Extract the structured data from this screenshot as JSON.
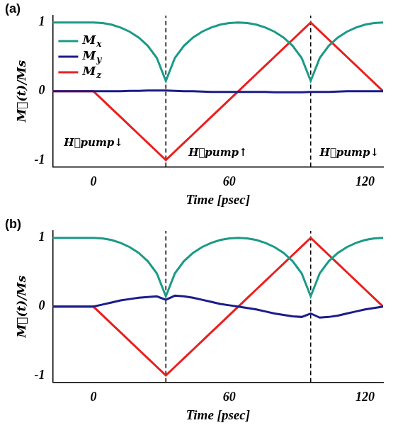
{
  "chart_data": [
    {
      "type": "line",
      "panel_label": "(a)",
      "x_label": "Time [psec]",
      "y_label": "M⃗(t)/Ms",
      "x": [
        -18,
        -10,
        -5,
        0,
        4,
        8,
        12,
        16,
        20,
        24,
        28,
        32,
        36,
        40,
        44,
        48,
        52,
        56,
        60,
        64,
        68,
        72,
        76,
        80,
        84,
        88,
        92,
        96,
        100,
        104,
        108,
        112,
        116,
        120,
        124,
        128
      ],
      "series": [
        {
          "name": "Mx",
          "color": "#1b9a86",
          "values": [
            1,
            1,
            1,
            1,
            0.992,
            0.968,
            0.927,
            0.866,
            0.781,
            0.661,
            0.484,
            0.15,
            0.484,
            0.661,
            0.781,
            0.866,
            0.927,
            0.968,
            0.992,
            1,
            0.992,
            0.968,
            0.927,
            0.866,
            0.781,
            0.661,
            0.484,
            0.15,
            0.484,
            0.661,
            0.781,
            0.866,
            0.927,
            0.968,
            0.992,
            1
          ]
        },
        {
          "name": "My",
          "color": "#1c1c8a",
          "values": [
            0,
            0,
            0,
            0,
            0,
            0,
            0,
            0.005,
            0.005,
            0.01,
            0.01,
            0.01,
            0.005,
            0,
            0,
            -0.005,
            -0.01,
            -0.01,
            -0.01,
            -0.01,
            -0.01,
            -0.01,
            -0.01,
            -0.015,
            -0.015,
            -0.015,
            -0.015,
            -0.01,
            -0.01,
            -0.01,
            -0.005,
            0,
            0,
            0,
            0,
            0
          ]
        },
        {
          "name": "Mz",
          "color": "#e8201f",
          "values": [
            0,
            0,
            0,
            0,
            -0.125,
            -0.25,
            -0.375,
            -0.5,
            -0.625,
            -0.75,
            -0.875,
            -1,
            -0.875,
            -0.75,
            -0.625,
            -0.5,
            -0.375,
            -0.25,
            -0.125,
            0,
            0.125,
            0.25,
            0.375,
            0.5,
            0.625,
            0.75,
            0.875,
            1,
            0.875,
            0.75,
            0.625,
            0.5,
            0.375,
            0.25,
            0.125,
            0
          ]
        }
      ],
      "xlim": [
        -18,
        128
      ],
      "ylim": [
        -1.1,
        1.1
      ],
      "xticks": [
        0,
        60,
        120
      ],
      "yticks": [
        -1,
        0,
        1
      ],
      "grid": false,
      "legend": "upper left",
      "vertical_lines": [
        32,
        96
      ],
      "annotations": [
        {
          "x": -13,
          "y": -0.75,
          "text": "H⃗pump↓"
        },
        {
          "x": 42,
          "y": -0.9,
          "text": "H⃗pump↑"
        },
        {
          "x": 100,
          "y": -0.9,
          "text": "H⃗pump↓"
        }
      ]
    },
    {
      "type": "line",
      "panel_label": "(b)",
      "x_label": "Time [psec]",
      "y_label": "M⃗(t)/Ms",
      "x": [
        -18,
        -10,
        -5,
        0,
        4,
        8,
        12,
        16,
        20,
        24,
        28,
        32,
        36,
        40,
        44,
        48,
        52,
        56,
        60,
        64,
        68,
        72,
        76,
        80,
        84,
        88,
        92,
        96,
        100,
        104,
        108,
        112,
        116,
        120,
        124,
        128
      ],
      "series": [
        {
          "name": "Mx",
          "color": "#1b9a86",
          "values": [
            1,
            1,
            1,
            1,
            0.992,
            0.968,
            0.927,
            0.866,
            0.781,
            0.661,
            0.484,
            0.15,
            0.484,
            0.661,
            0.781,
            0.866,
            0.927,
            0.968,
            0.992,
            1,
            0.992,
            0.968,
            0.927,
            0.866,
            0.781,
            0.661,
            0.484,
            0.15,
            0.484,
            0.661,
            0.781,
            0.866,
            0.927,
            0.968,
            0.992,
            1
          ]
        },
        {
          "name": "My",
          "color": "#1c1c8a",
          "values": [
            0,
            0,
            0,
            0,
            0.03,
            0.06,
            0.09,
            0.11,
            0.13,
            0.14,
            0.15,
            0.1,
            0.16,
            0.15,
            0.13,
            0.1,
            0.07,
            0.04,
            0.02,
            0,
            -0.02,
            -0.04,
            -0.07,
            -0.1,
            -0.12,
            -0.14,
            -0.15,
            -0.1,
            -0.16,
            -0.15,
            -0.13,
            -0.1,
            -0.07,
            -0.04,
            -0.02,
            0
          ]
        },
        {
          "name": "Mz",
          "color": "#e8201f",
          "values": [
            0,
            0,
            0,
            0,
            -0.125,
            -0.25,
            -0.375,
            -0.5,
            -0.625,
            -0.75,
            -0.875,
            -1,
            -0.875,
            -0.75,
            -0.625,
            -0.5,
            -0.375,
            -0.25,
            -0.125,
            0,
            0.125,
            0.25,
            0.375,
            0.5,
            0.625,
            0.75,
            0.875,
            1,
            0.875,
            0.75,
            0.625,
            0.5,
            0.375,
            0.25,
            0.125,
            0
          ]
        }
      ],
      "xlim": [
        -18,
        128
      ],
      "ylim": [
        -1.1,
        1.1
      ],
      "xticks": [
        0,
        60,
        120
      ],
      "yticks": [
        -1,
        0,
        1
      ],
      "grid": false,
      "vertical_lines": [
        32,
        96
      ]
    }
  ]
}
